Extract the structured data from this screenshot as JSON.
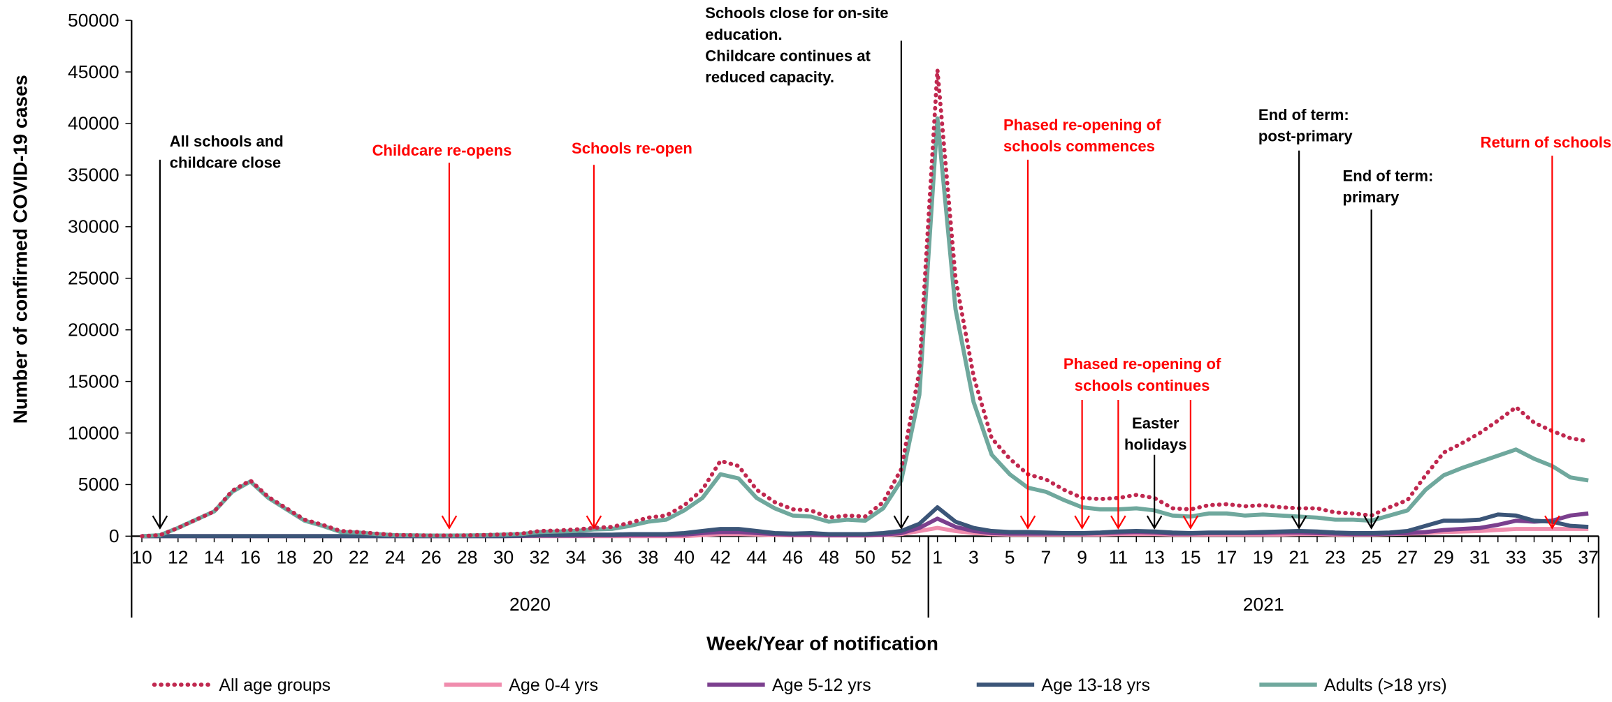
{
  "chart_data": {
    "type": "line",
    "y_label": "Number of confirmed COVID-19 cases",
    "x_label": "Week/Year of notification",
    "years": [
      "2020",
      "2021"
    ],
    "categories": [
      10,
      null,
      12,
      null,
      14,
      null,
      16,
      null,
      18,
      null,
      20,
      null,
      22,
      null,
      24,
      null,
      26,
      null,
      28,
      null,
      30,
      null,
      32,
      null,
      34,
      null,
      36,
      null,
      38,
      null,
      40,
      null,
      42,
      null,
      44,
      null,
      46,
      null,
      48,
      null,
      50,
      null,
      52,
      null,
      1,
      null,
      3,
      null,
      5,
      null,
      7,
      null,
      9,
      null,
      11,
      null,
      13,
      null,
      15,
      null,
      17,
      null,
      19,
      null,
      21,
      null,
      23,
      null,
      25,
      null,
      27,
      null,
      29,
      null,
      31,
      null,
      33,
      null,
      35,
      null,
      37
    ],
    "ylim": [
      0,
      50000
    ],
    "yticks": [
      0,
      5000,
      10000,
      15000,
      20000,
      25000,
      30000,
      35000,
      40000,
      45000,
      50000
    ],
    "series": [
      {
        "name": "All age groups",
        "color": "#c0284f",
        "dotted": true,
        "values": [
          0,
          100,
          800,
          1600,
          2400,
          4400,
          5400,
          3800,
          2700,
          1600,
          1100,
          500,
          400,
          250,
          120,
          90,
          70,
          70,
          80,
          120,
          180,
          250,
          500,
          550,
          650,
          800,
          900,
          1300,
          1800,
          2000,
          3000,
          4500,
          7300,
          6800,
          4500,
          3300,
          2600,
          2500,
          1800,
          2000,
          1900,
          3300,
          6500,
          16000,
          45200,
          25000,
          15500,
          9500,
          7500,
          6000,
          5500,
          4500,
          3700,
          3600,
          3700,
          4000,
          3700,
          2700,
          2600,
          3000,
          3100,
          2900,
          3000,
          2800,
          2700,
          2700,
          2300,
          2200,
          2000,
          2800,
          3500,
          5900,
          8100,
          9000,
          10000,
          11200,
          12500,
          11000,
          10200,
          9500,
          9200
        ]
      },
      {
        "name": "Age 0-4 yrs",
        "color": "#f08cad",
        "values": [
          0,
          0,
          0,
          0,
          0,
          0,
          0,
          0,
          0,
          0,
          0,
          0,
          0,
          0,
          0,
          0,
          0,
          0,
          0,
          0,
          0,
          0,
          0,
          0,
          0,
          0,
          0,
          0,
          0,
          0,
          0,
          100,
          200,
          200,
          150,
          100,
          80,
          80,
          60,
          60,
          60,
          100,
          200,
          500,
          800,
          500,
          300,
          200,
          150,
          150,
          150,
          150,
          150,
          150,
          200,
          200,
          200,
          150,
          150,
          150,
          150,
          150,
          150,
          150,
          200,
          200,
          150,
          150,
          150,
          200,
          250,
          300,
          400,
          450,
          500,
          600,
          700,
          700,
          700,
          700,
          700
        ]
      },
      {
        "name": "Age 5-12 yrs",
        "color": "#7b3f8e",
        "values": [
          0,
          0,
          0,
          0,
          0,
          0,
          0,
          0,
          0,
          0,
          0,
          0,
          0,
          0,
          0,
          0,
          0,
          0,
          0,
          0,
          0,
          20,
          50,
          50,
          50,
          80,
          80,
          100,
          100,
          100,
          150,
          300,
          400,
          400,
          300,
          200,
          150,
          150,
          100,
          100,
          100,
          150,
          300,
          800,
          1700,
          900,
          500,
          300,
          250,
          250,
          250,
          250,
          250,
          300,
          350,
          400,
          350,
          250,
          250,
          300,
          300,
          300,
          300,
          350,
          350,
          300,
          250,
          200,
          200,
          250,
          300,
          400,
          600,
          700,
          800,
          1100,
          1500,
          1400,
          1500,
          2000,
          2200
        ]
      },
      {
        "name": "Age 13-18 yrs",
        "color": "#3b5578",
        "values": [
          0,
          0,
          0,
          0,
          0,
          0,
          0,
          0,
          0,
          0,
          0,
          0,
          0,
          0,
          0,
          0,
          0,
          0,
          0,
          0,
          0,
          50,
          100,
          100,
          150,
          150,
          150,
          200,
          200,
          200,
          300,
          500,
          700,
          700,
          500,
          300,
          250,
          300,
          200,
          200,
          200,
          300,
          500,
          1200,
          2800,
          1400,
          800,
          500,
          400,
          400,
          350,
          300,
          300,
          350,
          450,
          500,
          450,
          350,
          300,
          350,
          350,
          350,
          400,
          450,
          500,
          450,
          350,
          300,
          300,
          350,
          500,
          1000,
          1500,
          1500,
          1600,
          2100,
          2000,
          1500,
          1400,
          1000,
          900
        ]
      },
      {
        "name": "Adults (>18 yrs)",
        "color": "#6fa89d",
        "values": [
          0,
          100,
          800,
          1600,
          2400,
          4300,
          5300,
          3700,
          2600,
          1500,
          1000,
          400,
          350,
          200,
          100,
          80,
          60,
          60,
          70,
          100,
          150,
          200,
          400,
          450,
          500,
          650,
          700,
          1000,
          1400,
          1600,
          2500,
          3700,
          6000,
          5600,
          3700,
          2700,
          2000,
          1900,
          1400,
          1600,
          1500,
          2700,
          5400,
          13700,
          40500,
          22000,
          13000,
          7900,
          6000,
          4700,
          4300,
          3500,
          2800,
          2600,
          2600,
          2700,
          2500,
          2000,
          1900,
          2200,
          2200,
          2000,
          2100,
          2000,
          1900,
          1800,
          1600,
          1600,
          1500,
          2000,
          2500,
          4500,
          5900,
          6600,
          7200,
          7800,
          8400,
          7500,
          6800,
          5700,
          5400
        ]
      }
    ],
    "annotations": [
      {
        "text": [
          "All schools and",
          "childcare close"
        ],
        "color": "#000000",
        "year": "2020",
        "weeks": [
          11
        ]
      },
      {
        "text": [
          "Childcare re-opens"
        ],
        "color": "#ff0000",
        "year": "2020",
        "weeks": [
          27
        ]
      },
      {
        "text": [
          "Schools re-open"
        ],
        "color": "#ff0000",
        "year": "2020",
        "weeks": [
          35
        ]
      },
      {
        "text": [
          "Schools close for on-site",
          "education.",
          "Childcare continues at",
          "reduced capacity."
        ],
        "color": "#000000",
        "year": "2020",
        "weeks": [
          52
        ]
      },
      {
        "text": [
          "Phased re-opening of",
          "schools commences"
        ],
        "color": "#ff0000",
        "year": "2021",
        "weeks": [
          6
        ]
      },
      {
        "text": [
          "Phased re-opening of",
          "schools continues"
        ],
        "color": "#ff0000",
        "year": "2021",
        "weeks": [
          9,
          11,
          15
        ]
      },
      {
        "text": [
          "Easter",
          "holidays"
        ],
        "color": "#000000",
        "year": "2021",
        "weeks": [
          13
        ]
      },
      {
        "text": [
          "End of term:",
          "post-primary"
        ],
        "color": "#000000",
        "year": "2021",
        "weeks": [
          21
        ]
      },
      {
        "text": [
          "End of term:",
          "primary"
        ],
        "color": "#000000",
        "year": "2021",
        "weeks": [
          25
        ]
      },
      {
        "text": [
          "Return of schools"
        ],
        "color": "#ff0000",
        "year": "2021",
        "weeks": [
          35
        ]
      }
    ]
  }
}
